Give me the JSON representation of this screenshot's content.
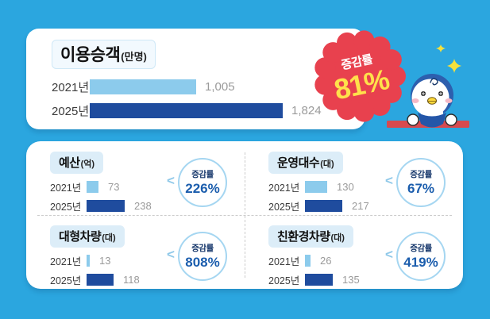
{
  "colors": {
    "background": "#2BA6DF",
    "card": "#FFFFFF",
    "bar_2021": "#8CCBEC",
    "bar_2025": "#1F4C9E",
    "year_label_text": "#3C3C3C",
    "value_text": "#9A9A9A",
    "title_pill": "#DCEDF8",
    "badge_red": "#E8414E",
    "badge_yellow": "#FFE14B",
    "circle_ring": "#A5D6F1",
    "percent_blue": "#1B5DAD",
    "badge_label_navy": "#16376B",
    "ledge_red": "#D7494F"
  },
  "chart_data": [
    {
      "type": "bar",
      "orientation": "horizontal",
      "title": "이용승객",
      "unit": "(만명)",
      "categories": [
        "2021년",
        "2025년"
      ],
      "values": [
        1005,
        1824
      ],
      "value_labels": [
        "1,005",
        "1,824"
      ],
      "badge_label": "증감률",
      "badge_value": "81%"
    },
    {
      "type": "bar",
      "orientation": "horizontal",
      "title": "예산",
      "unit": "(억)",
      "categories": [
        "2021년",
        "2025년"
      ],
      "values": [
        73,
        238
      ],
      "value_labels": [
        "73",
        "238"
      ],
      "badge_label": "증감률",
      "badge_value": "226%"
    },
    {
      "type": "bar",
      "orientation": "horizontal",
      "title": "운영대수",
      "unit": "(대)",
      "categories": [
        "2021년",
        "2025년"
      ],
      "values": [
        130,
        217
      ],
      "value_labels": [
        "130",
        "217"
      ],
      "badge_label": "증감률",
      "badge_value": "67%"
    },
    {
      "type": "bar",
      "orientation": "horizontal",
      "title": "대형차량",
      "unit": "(대)",
      "categories": [
        "2021년",
        "2025년"
      ],
      "values": [
        13,
        118
      ],
      "value_labels": [
        "13",
        "118"
      ],
      "badge_label": "증감률",
      "badge_value": "808%"
    },
    {
      "type": "bar",
      "orientation": "horizontal",
      "title": "친환경차량",
      "unit": "(대)",
      "categories": [
        "2021년",
        "2025년"
      ],
      "values": [
        26,
        135
      ],
      "value_labels": [
        "26",
        "135"
      ],
      "badge_label": "증감률",
      "badge_value": "419%"
    }
  ]
}
